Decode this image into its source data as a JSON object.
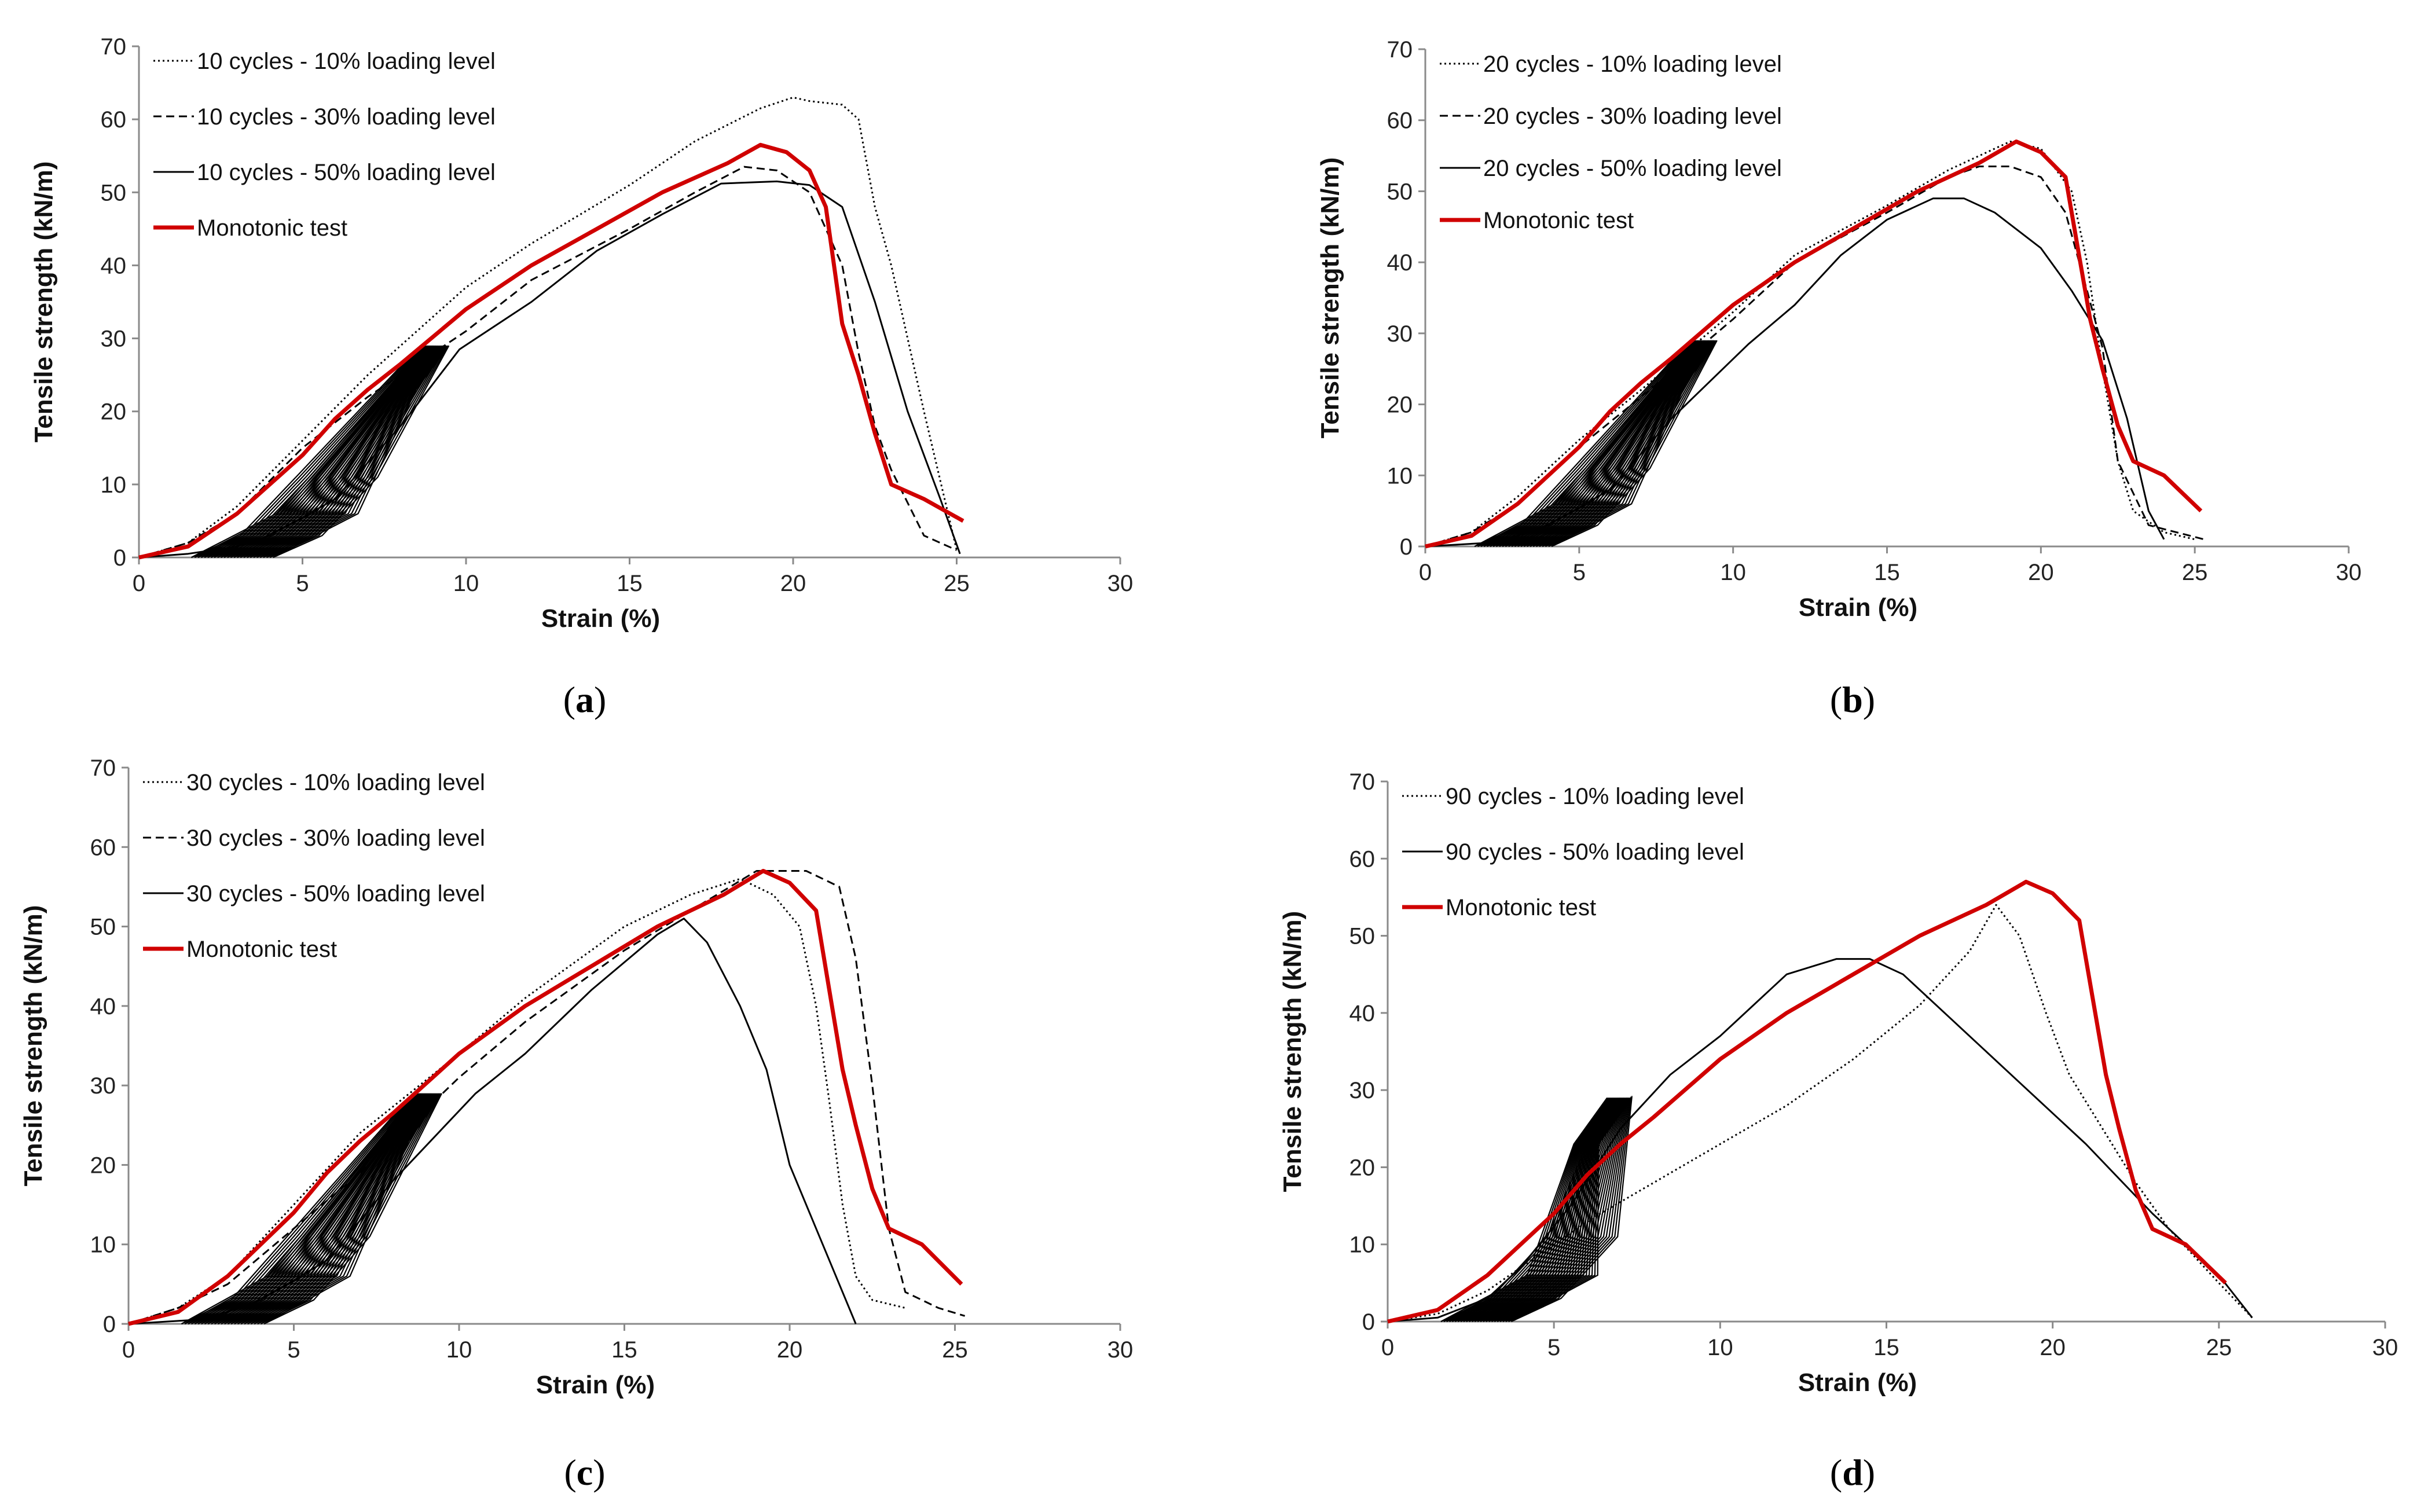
{
  "figure": {
    "panel_labels": [
      {
        "open": "(",
        "letter": "a",
        "close": ")"
      },
      {
        "open": "(",
        "letter": "b",
        "close": ")"
      },
      {
        "open": "(",
        "letter": "c",
        "close": ")"
      },
      {
        "open": "(",
        "letter": "d",
        "close": ")"
      }
    ]
  },
  "colors": {
    "monotonic": "#d00000",
    "cyclic": "#000000",
    "axis": "#8a8a8a"
  },
  "chart_data": [
    {
      "type": "line",
      "panel": "a",
      "xlabel": "Strain (%)",
      "ylabel": "Tensile strength (kN/m)",
      "xlim": [
        0,
        30
      ],
      "ylim": [
        0,
        70
      ],
      "xticks": [
        0,
        5,
        10,
        15,
        20,
        25,
        30
      ],
      "yticks": [
        0,
        10,
        20,
        30,
        40,
        50,
        60,
        70
      ],
      "legend_position": "top-left",
      "series": [
        {
          "name": "10 cycles - 10% loading level",
          "style": "dotted",
          "x": [
            0,
            1.5,
            3,
            5,
            7,
            9,
            10,
            12,
            15,
            17,
            19,
            20,
            20.5,
            21.5,
            22,
            22.5,
            23,
            24,
            25
          ],
          "y": [
            0,
            2,
            7,
            16,
            25,
            33,
            37,
            43,
            51,
            57,
            61.5,
            63,
            62.5,
            62,
            60,
            48,
            40,
            20,
            1
          ]
        },
        {
          "name": "10 cycles - 30% loading level",
          "style": "dashed",
          "x": [
            0,
            1.5,
            3,
            5,
            7,
            10,
            12,
            15,
            17,
            18.5,
            19.5,
            20.5,
            21.5,
            22,
            22.5,
            23,
            24,
            25
          ],
          "y": [
            0,
            2,
            6,
            15,
            22,
            31,
            38,
            45,
            50,
            53.5,
            53,
            50,
            40,
            28,
            18,
            12,
            3,
            1
          ]
        },
        {
          "name": "10 cycles - 50% loading level",
          "style": "solid",
          "x": [
            0,
            1.5,
            3,
            4,
            6,
            8,
            9.8,
            12,
            14,
            16,
            17.8,
            19.5,
            20.5,
            21.5,
            22.5,
            23.5,
            24.5,
            25.1
          ],
          "y": [
            0,
            0.5,
            1.5,
            3,
            8,
            18,
            28.5,
            35,
            42,
            47,
            51.2,
            51.5,
            51,
            48,
            35,
            20,
            8,
            0.5
          ]
        },
        {
          "name": "Monotonic test",
          "style": "solid-red",
          "x": [
            0,
            1.5,
            3,
            5,
            6,
            7,
            8,
            10,
            12,
            14,
            16,
            18,
            19,
            19.8,
            20.5,
            21,
            21.5,
            22,
            22.5,
            23,
            24,
            25.2
          ],
          "y": [
            0,
            1.5,
            6,
            14,
            19,
            23,
            26.5,
            34,
            40,
            45,
            50,
            54,
            56.5,
            55.5,
            53,
            48,
            32,
            25,
            17,
            10,
            8,
            5
          ]
        }
      ]
    },
    {
      "type": "line",
      "panel": "b",
      "xlabel": "Strain (%)",
      "ylabel": "Tensile strength (kN/m)",
      "xlim": [
        0,
        30
      ],
      "ylim": [
        0,
        70
      ],
      "xticks": [
        0,
        5,
        10,
        15,
        20,
        25,
        30
      ],
      "yticks": [
        0,
        10,
        20,
        30,
        40,
        50,
        60,
        70
      ],
      "legend_position": "top-left",
      "series": [
        {
          "name": "20 cycles - 10% loading level",
          "style": "dotted",
          "x": [
            0,
            1.5,
            3,
            5,
            7,
            10,
            12,
            15,
            17,
            19,
            20,
            21,
            21.5,
            22,
            22.5,
            23,
            24,
            25
          ],
          "y": [
            0,
            2,
            7,
            15,
            22,
            33,
            41,
            48,
            53,
            57,
            56,
            50,
            40,
            25,
            12,
            5,
            2,
            1
          ]
        },
        {
          "name": "20 cycles - 30% loading level",
          "style": "dashed",
          "x": [
            0,
            1.5,
            3,
            5,
            7,
            10,
            12,
            15,
            17,
            18,
            19,
            20,
            20.8,
            21.5,
            22,
            22.5,
            23.5,
            25.3
          ],
          "y": [
            0,
            2,
            6,
            14,
            21,
            32,
            40,
            47,
            52,
            53.5,
            53.5,
            52,
            47,
            36,
            28,
            12,
            3,
            1
          ]
        },
        {
          "name": "20 cycles - 50% loading level",
          "style": "solid",
          "x": [
            0,
            2,
            3,
            4,
            6,
            8,
            10.5,
            12,
            13.5,
            15,
            16.5,
            17.5,
            18.5,
            20,
            21,
            22,
            22.8,
            23.5,
            24
          ],
          "y": [
            0,
            0.5,
            1.5,
            3,
            8,
            18,
            28.5,
            34,
            41,
            46,
            49,
            49,
            47,
            42,
            36,
            29,
            18,
            5,
            1
          ]
        },
        {
          "name": "Monotonic test",
          "style": "solid-red",
          "x": [
            0,
            1.5,
            3,
            5,
            6,
            7,
            8,
            10,
            12,
            14,
            16,
            18,
            19.2,
            20,
            20.8,
            21.2,
            21.6,
            22,
            22.5,
            23,
            24,
            25.2
          ],
          "y": [
            0,
            1.5,
            6,
            14,
            19,
            23,
            26.5,
            34,
            40,
            45,
            50,
            54,
            57,
            55.5,
            52,
            42,
            32,
            25,
            17,
            12,
            10,
            5
          ]
        }
      ]
    },
    {
      "type": "line",
      "panel": "c",
      "xlabel": "Strain (%)",
      "ylabel": "Tensile strength (kN/m)",
      "xlim": [
        0,
        30
      ],
      "ylim": [
        0,
        70
      ],
      "xticks": [
        0,
        5,
        10,
        15,
        20,
        25,
        30
      ],
      "yticks": [
        0,
        10,
        20,
        30,
        40,
        50,
        60,
        70
      ],
      "legend_position": "top-left",
      "series": [
        {
          "name": "30 cycles - 10% loading level",
          "style": "dotted",
          "x": [
            0,
            1.5,
            3,
            5,
            7,
            10,
            12,
            15,
            17,
            18.5,
            19.5,
            20.3,
            20.8,
            21.2,
            21.6,
            22,
            22.5,
            23.5
          ],
          "y": [
            0,
            2,
            6,
            15,
            24,
            34,
            41,
            50,
            54,
            56,
            54,
            50,
            40,
            28,
            15,
            6,
            3,
            2
          ]
        },
        {
          "name": "30 cycles - 30% loading level",
          "style": "dashed",
          "x": [
            0,
            1.5,
            3,
            5,
            7,
            10,
            12,
            15,
            17,
            19,
            20.5,
            21.5,
            22,
            22.5,
            23,
            23.5,
            24.5,
            25.3
          ],
          "y": [
            0,
            2,
            5,
            12,
            19,
            31,
            38,
            47,
            52,
            57,
            57,
            55,
            46,
            30,
            12,
            4,
            2,
            1
          ]
        },
        {
          "name": "30 cycles - 50% loading level",
          "style": "solid",
          "x": [
            0,
            2,
            3,
            4,
            6,
            8,
            10.5,
            12,
            14,
            16,
            16.8,
            17.5,
            18.5,
            19.3,
            20,
            20.8,
            21.5,
            22
          ],
          "y": [
            0,
            0.5,
            1.5,
            3,
            8,
            18,
            29,
            34,
            42,
            49,
            51,
            48,
            40,
            32,
            20,
            12,
            5,
            0
          ]
        },
        {
          "name": "Monotonic test",
          "style": "solid-red",
          "x": [
            0,
            1.5,
            3,
            5,
            6,
            7,
            8,
            10,
            12,
            14,
            16,
            18,
            19.2,
            20,
            20.8,
            21.2,
            21.6,
            22,
            22.5,
            23,
            24,
            25.2
          ],
          "y": [
            0,
            1.5,
            6,
            14,
            19,
            23,
            26.5,
            34,
            40,
            45,
            50,
            54,
            57,
            55.5,
            52,
            42,
            32,
            25,
            17,
            12,
            10,
            5
          ]
        }
      ]
    },
    {
      "type": "line",
      "panel": "d",
      "xlabel": "Strain (%)",
      "ylabel": "Tensile strength (kN/m)",
      "xlim": [
        0,
        30
      ],
      "ylim": [
        0,
        70
      ],
      "xticks": [
        0,
        5,
        10,
        15,
        20,
        25,
        30
      ],
      "yticks": [
        0,
        10,
        20,
        30,
        40,
        50,
        60,
        70
      ],
      "legend_position": "top-left",
      "series": [
        {
          "name": "90 cycles - 10% loading level",
          "style": "dotted",
          "x": [
            0,
            1.5,
            3,
            5,
            6.2,
            8,
            10,
            12,
            14,
            16,
            17.5,
            18.3,
            19,
            19.8,
            20.5,
            21.5,
            22.5,
            23.5,
            25,
            26
          ],
          "y": [
            0,
            1,
            4,
            10,
            13.5,
            18,
            23,
            28,
            34,
            41,
            48,
            54,
            50,
            40,
            32,
            25,
            18,
            12,
            5,
            0.5
          ]
        },
        {
          "name": "90 cycles - 50% loading level",
          "style": "solid",
          "x": [
            0,
            1.5,
            3,
            4,
            5.5,
            7,
            8.5,
            10,
            12,
            13.5,
            14.5,
            15.5,
            17,
            19,
            21,
            23,
            25,
            26
          ],
          "y": [
            0,
            0.5,
            3,
            7,
            15,
            25,
            32,
            37,
            45,
            47,
            47,
            45,
            39,
            31,
            23,
            14,
            6,
            0.5
          ]
        },
        {
          "name": "Monotonic test",
          "style": "solid-red",
          "x": [
            0,
            1.5,
            3,
            5,
            6,
            7,
            8,
            10,
            12,
            14,
            16,
            18,
            19.2,
            20,
            20.8,
            21.2,
            21.6,
            22,
            22.5,
            23,
            24,
            25.2
          ],
          "y": [
            0,
            1.5,
            6,
            14,
            19,
            23,
            26.5,
            34,
            40,
            45,
            50,
            54,
            57,
            55.5,
            52,
            42,
            32,
            25,
            17,
            12,
            10,
            5
          ]
        }
      ]
    }
  ]
}
